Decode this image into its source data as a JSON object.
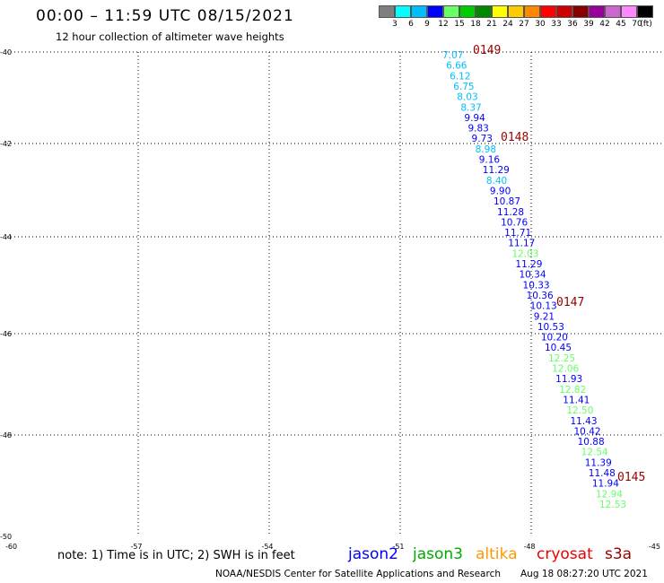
{
  "header": {
    "title": "00:00 – 11:59 UTC 08/15/2021",
    "subtitle": "12 hour collection of altimeter wave heights"
  },
  "color_scale": {
    "unit": "(ft)",
    "bins": [
      {
        "label": "3",
        "color": "#7f7f7f"
      },
      {
        "label": "6",
        "color": "#00ffff"
      },
      {
        "label": "9",
        "color": "#00bfff"
      },
      {
        "label": "12",
        "color": "#0000ff"
      },
      {
        "label": "15",
        "color": "#66ff66"
      },
      {
        "label": "18",
        "color": "#00cc00"
      },
      {
        "label": "21",
        "color": "#008800"
      },
      {
        "label": "24",
        "color": "#ffff00"
      },
      {
        "label": "27",
        "color": "#ffcc00"
      },
      {
        "label": "30",
        "color": "#ff8800"
      },
      {
        "label": "33",
        "color": "#ff0000"
      },
      {
        "label": "36",
        "color": "#cc0000"
      },
      {
        "label": "39",
        "color": "#880000"
      },
      {
        "label": "42",
        "color": "#990099"
      },
      {
        "label": "45",
        "color": "#cc66cc"
      },
      {
        "label": "70",
        "color": "#ff88ff"
      },
      {
        "label": "",
        "color": "#000000"
      }
    ]
  },
  "map": {
    "lat_labels": [
      "-40",
      "-42",
      "-44",
      "-46",
      "-48",
      "-50"
    ],
    "lon_labels": [
      "-60",
      "-57",
      "-54",
      "-51",
      "-48",
      "-45"
    ],
    "observations": [
      {
        "v": "7.07",
        "color": "#00bfff"
      },
      {
        "v": "6.66",
        "color": "#00bfff"
      },
      {
        "v": "6.12",
        "color": "#00bfff"
      },
      {
        "v": "6.75",
        "color": "#00bfff"
      },
      {
        "v": "8.03",
        "color": "#00bfff"
      },
      {
        "v": "8.37",
        "color": "#00bfff"
      },
      {
        "v": "9.94",
        "color": "#0000ff"
      },
      {
        "v": "9.83",
        "color": "#0000ff"
      },
      {
        "v": "9.73",
        "color": "#0000ff"
      },
      {
        "v": "8.98",
        "color": "#00bfff"
      },
      {
        "v": "9.16",
        "color": "#0000ff"
      },
      {
        "v": "11.29",
        "color": "#0000ff"
      },
      {
        "v": "8.40",
        "color": "#00bfff"
      },
      {
        "v": "9.90",
        "color": "#0000ff"
      },
      {
        "v": "10.87",
        "color": "#0000ff"
      },
      {
        "v": "11.28",
        "color": "#0000ff"
      },
      {
        "v": "10.76",
        "color": "#0000ff"
      },
      {
        "v": "11.71",
        "color": "#0000ff"
      },
      {
        "v": "11.17",
        "color": "#0000ff"
      },
      {
        "v": "12.03",
        "color": "#66ff66"
      },
      {
        "v": "11.29",
        "color": "#0000ff"
      },
      {
        "v": "10.34",
        "color": "#0000ff"
      },
      {
        "v": "10.33",
        "color": "#0000ff"
      },
      {
        "v": "10.36",
        "color": "#0000ff"
      },
      {
        "v": "10.13",
        "color": "#0000ff"
      },
      {
        "v": "9.21",
        "color": "#0000ff"
      },
      {
        "v": "10.53",
        "color": "#0000ff"
      },
      {
        "v": "10.20",
        "color": "#0000ff"
      },
      {
        "v": "10.45",
        "color": "#0000ff"
      },
      {
        "v": "12.25",
        "color": "#66ff66"
      },
      {
        "v": "12.06",
        "color": "#66ff66"
      },
      {
        "v": "11.93",
        "color": "#0000ff"
      },
      {
        "v": "12.82",
        "color": "#66ff66"
      },
      {
        "v": "11.41",
        "color": "#0000ff"
      },
      {
        "v": "12.50",
        "color": "#66ff66"
      },
      {
        "v": "11.43",
        "color": "#0000ff"
      },
      {
        "v": "10.42",
        "color": "#0000ff"
      },
      {
        "v": "10.88",
        "color": "#0000ff"
      },
      {
        "v": "12.54",
        "color": "#66ff66"
      },
      {
        "v": "11.39",
        "color": "#0000ff"
      },
      {
        "v": "11.48",
        "color": "#0000ff"
      },
      {
        "v": "11.94",
        "color": "#0000ff"
      },
      {
        "v": "12.94",
        "color": "#66ff66"
      },
      {
        "v": "12.53",
        "color": "#66ff66"
      }
    ],
    "time_marks": [
      {
        "label": "0149",
        "color": "#990000"
      },
      {
        "label": "0148",
        "color": "#990000"
      },
      {
        "label": "0147",
        "color": "#990000"
      },
      {
        "label": "0145",
        "color": "#990000"
      }
    ]
  },
  "footer": {
    "note": "note:  1) Time is in UTC;  2) SWH is in feet",
    "legend": [
      {
        "label": "jason2",
        "color": "#0000ff"
      },
      {
        "label": "jason3",
        "color": "#00aa00"
      },
      {
        "label": "altika",
        "color": "#ff9900"
      },
      {
        "label": "cryosat",
        "color": "#ee0000"
      },
      {
        "label": "s3a",
        "color": "#990000"
      }
    ],
    "credit": "NOAA/NESDIS Center for Satellite Applications and Research",
    "timestamp": "Aug 18 08:27:20 UTC 2021"
  }
}
